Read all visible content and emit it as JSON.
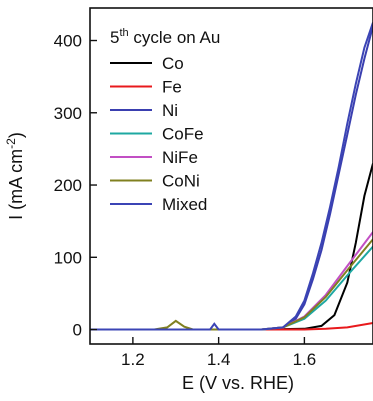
{
  "chart_data": {
    "type": "line",
    "title": "",
    "legend_title_main": "5",
    "legend_title_sup": "th",
    "legend_title_rest": " cycle on Au",
    "legend_position": "top-left",
    "xlabel": "E (V vs. RHE)",
    "ylabel_main": "I (mA cm",
    "ylabel_sup": "-2",
    "ylabel_end": ")",
    "xlim": [
      1.1,
      1.76
    ],
    "ylim": [
      -20,
      445
    ],
    "xticks": [
      1.2,
      1.4,
      1.6
    ],
    "xtick_labels": [
      "1.2",
      "1.4",
      "1.6"
    ],
    "yticks": [
      0,
      100,
      200,
      300,
      400
    ],
    "ytick_labels": [
      "0",
      "100",
      "200",
      "300",
      "400"
    ],
    "grid": false,
    "series": [
      {
        "name": "Co",
        "color": "#000000",
        "x": [
          1.1,
          1.5,
          1.6,
          1.64,
          1.67,
          1.7,
          1.72,
          1.74,
          1.76
        ],
        "y": [
          0,
          0,
          1,
          5,
          20,
          65,
          120,
          185,
          230
        ]
      },
      {
        "name": "Fe",
        "color": "#e8191c",
        "x": [
          1.1,
          1.5,
          1.6,
          1.65,
          1.7,
          1.76
        ],
        "y": [
          0,
          0,
          0,
          1,
          3,
          9
        ]
      },
      {
        "name": "Ni",
        "color": "#3a3fb0",
        "x": [
          1.1,
          1.5,
          1.55,
          1.58,
          1.6,
          1.62,
          1.64,
          1.66,
          1.68,
          1.7,
          1.72,
          1.74,
          1.76
        ],
        "y": [
          0,
          0,
          3,
          15,
          35,
          70,
          110,
          160,
          215,
          270,
          325,
          375,
          420
        ]
      },
      {
        "name": "CoFe",
        "color": "#1ea8a2",
        "x": [
          1.1,
          1.5,
          1.55,
          1.6,
          1.65,
          1.7,
          1.76
        ],
        "y": [
          0,
          0,
          3,
          15,
          40,
          75,
          115
        ]
      },
      {
        "name": "NiFe",
        "color": "#c24fc4",
        "x": [
          1.1,
          1.5,
          1.55,
          1.6,
          1.65,
          1.7,
          1.76
        ],
        "y": [
          0,
          0,
          3,
          18,
          48,
          88,
          135
        ]
      },
      {
        "name": "CoNi",
        "color": "#808020",
        "x": [
          1.1,
          1.25,
          1.28,
          1.3,
          1.32,
          1.34,
          1.5,
          1.55,
          1.6,
          1.65,
          1.7,
          1.76
        ],
        "y": [
          0,
          0,
          3,
          12,
          4,
          0,
          0,
          3,
          17,
          45,
          82,
          125
        ]
      },
      {
        "name": "Mixed",
        "color": "#3b44b5",
        "x": [
          1.1,
          1.38,
          1.39,
          1.4,
          1.5,
          1.55,
          1.58,
          1.6,
          1.62,
          1.64,
          1.66,
          1.68,
          1.7,
          1.72,
          1.74,
          1.76
        ],
        "y": [
          0,
          0,
          8,
          0,
          0,
          3,
          18,
          40,
          78,
          120,
          170,
          225,
          285,
          340,
          390,
          425
        ]
      }
    ]
  }
}
